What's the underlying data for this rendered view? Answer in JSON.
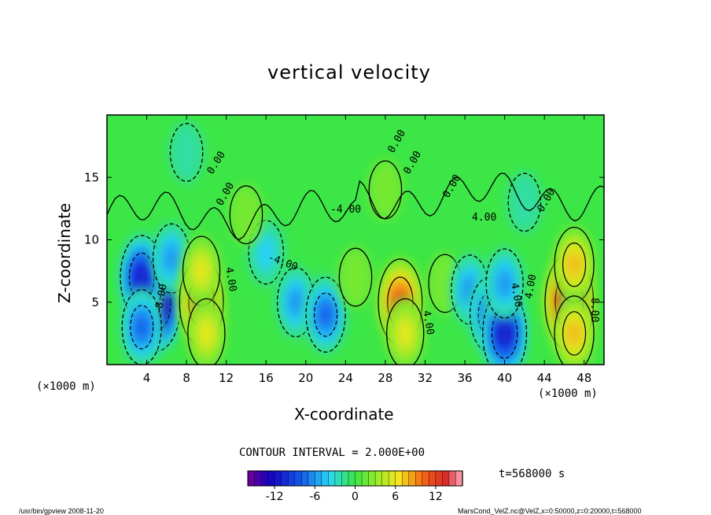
{
  "chart_data": {
    "type": "heatmap",
    "title": "vertical velocity",
    "xlabel": "X-coordinate",
    "ylabel": "Z-coordinate",
    "x_unit": "(×1000 m)",
    "y_unit": "(×1000 m)",
    "xlim": [
      0,
      50
    ],
    "ylim": [
      0,
      20
    ],
    "x_ticks": [
      "4",
      "8",
      "12",
      "16",
      "20",
      "24",
      "28",
      "32",
      "36",
      "40",
      "44",
      "48"
    ],
    "y_ticks": [
      "5",
      "10",
      "15"
    ],
    "contour_interval_label": "CONTOUR INTERVAL = 2.000E+00",
    "colorbar": {
      "min": -16,
      "max": 16,
      "ticks": [
        "-12",
        "-6",
        "0",
        "6",
        "12"
      ]
    },
    "time_label": "t=568000 s",
    "contour_labels": [
      "0.00",
      "0.00",
      "0.00",
      "0.00",
      "0.00",
      "0.00",
      "-4.00",
      "4.00",
      "4.00",
      "4.00",
      "4.00",
      "8.00",
      "-8.00",
      "-4.00",
      "4.00"
    ],
    "cells": [
      {
        "x": 5.0,
        "z": 5.0,
        "w": -16
      },
      {
        "x": 3.5,
        "z": 7.0,
        "w": -11
      },
      {
        "x": 3.5,
        "z": 3.0,
        "w": -8
      },
      {
        "x": 6.5,
        "z": 8.5,
        "w": -6
      },
      {
        "x": 9.5,
        "z": 5.0,
        "w": 12
      },
      {
        "x": 9.5,
        "z": 7.5,
        "w": 6
      },
      {
        "x": 10.0,
        "z": 2.5,
        "w": 6
      },
      {
        "x": 16.0,
        "z": 9.0,
        "w": -4
      },
      {
        "x": 19.0,
        "z": 5.0,
        "w": -6
      },
      {
        "x": 22.0,
        "z": 4.0,
        "w": -8
      },
      {
        "x": 25.0,
        "z": 7.0,
        "w": 2
      },
      {
        "x": 29.5,
        "z": 5.0,
        "w": 12
      },
      {
        "x": 30.0,
        "z": 2.5,
        "w": 6
      },
      {
        "x": 34.0,
        "z": 6.5,
        "w": 2
      },
      {
        "x": 36.5,
        "z": 6.0,
        "w": -6
      },
      {
        "x": 38.5,
        "z": 4.0,
        "w": -8
      },
      {
        "x": 40.0,
        "z": 2.5,
        "w": -12
      },
      {
        "x": 40.0,
        "z": 6.5,
        "w": -6
      },
      {
        "x": 46.5,
        "z": 5.0,
        "w": 16
      },
      {
        "x": 47.0,
        "z": 8.0,
        "w": 8
      },
      {
        "x": 47.0,
        "z": 2.5,
        "w": 8
      },
      {
        "x": 8.0,
        "z": 17.0,
        "w": -2
      },
      {
        "x": 14.0,
        "z": 12.0,
        "w": 2
      },
      {
        "x": 28.0,
        "z": 14.0,
        "w": 2
      },
      {
        "x": 42.0,
        "z": 13.0,
        "w": -2
      }
    ]
  },
  "footer": {
    "left": "/usr/bin/gpview   2008-11-20",
    "right": "MarsCond_VelZ.nc@VelZ,x=0:50000,z=0:20000,t=568000"
  }
}
